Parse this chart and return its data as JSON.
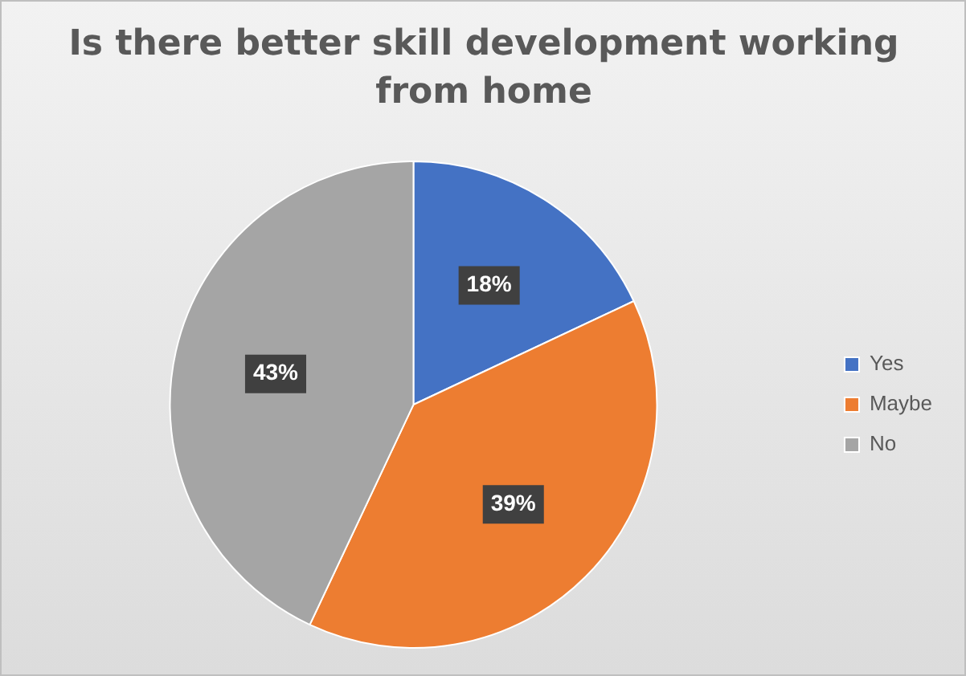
{
  "chart_data": {
    "type": "pie",
    "title": "Is there better skill development working from home",
    "categories": [
      "Yes",
      "Maybe",
      "No"
    ],
    "values": [
      18,
      39,
      43
    ],
    "colors": [
      "#4472c4",
      "#ed7d31",
      "#a5a5a5"
    ],
    "value_labels": [
      "18%",
      "39%",
      "43%"
    ],
    "legend": "right"
  }
}
